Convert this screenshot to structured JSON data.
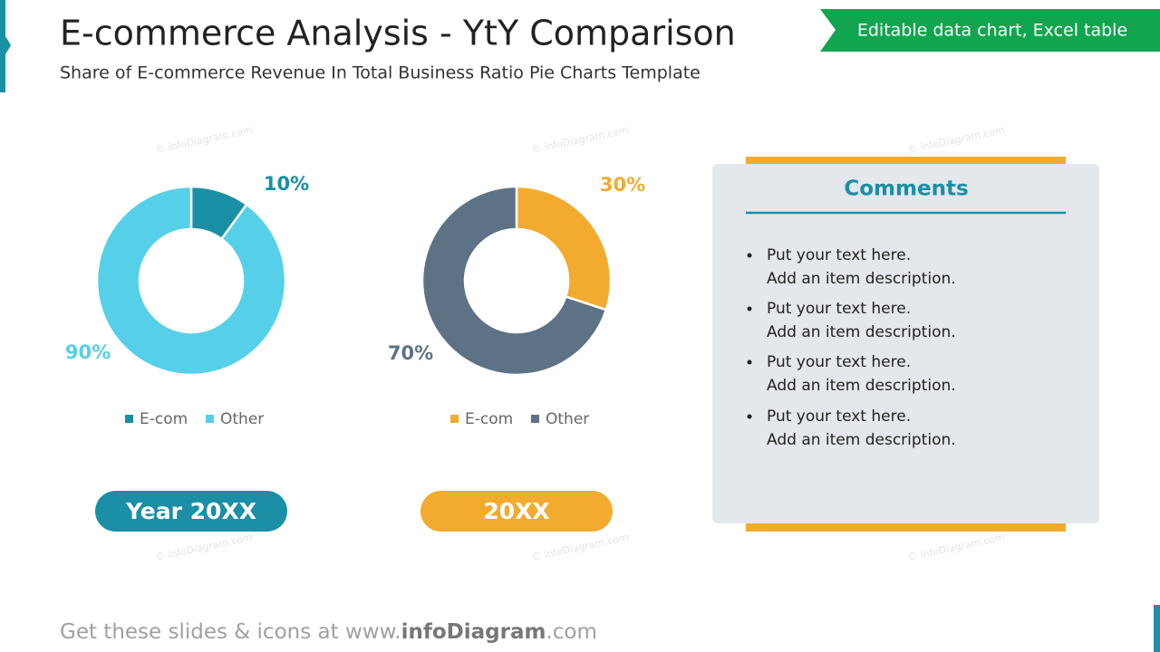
{
  "header": {
    "title": "E-commerce Analysis - YtY Comparison",
    "subtitle": "Share of E-commerce Revenue In Total Business Ratio Pie Charts Template",
    "badge": "Editable data chart, Excel table"
  },
  "watermark": "© infoDiagram.com",
  "chart_data": [
    {
      "type": "donut",
      "categories": [
        "E-com",
        "Other"
      ],
      "values": [
        10,
        90
      ],
      "value_labels": [
        "10%",
        "90%"
      ],
      "colors": [
        "#1a8fa6",
        "#56d0e8"
      ],
      "caption": "Year 20XX"
    },
    {
      "type": "donut",
      "categories": [
        "E-com",
        "Other"
      ],
      "values": [
        30,
        70
      ],
      "value_labels": [
        "30%",
        "70%"
      ],
      "colors": [
        "#f2ab2f",
        "#5d7285"
      ],
      "caption": "20XX"
    }
  ],
  "comments": {
    "title": "Comments",
    "items": [
      [
        "Put your text here.",
        "Add an item description."
      ],
      [
        "Put your text here.",
        "Add an item description."
      ],
      [
        "Put your text here.",
        "Add an item description."
      ],
      [
        "Put your text here.",
        "Add an item description."
      ]
    ]
  },
  "footer": [
    "Get these slides & icons at www.",
    "infoDiagram",
    ".com"
  ]
}
